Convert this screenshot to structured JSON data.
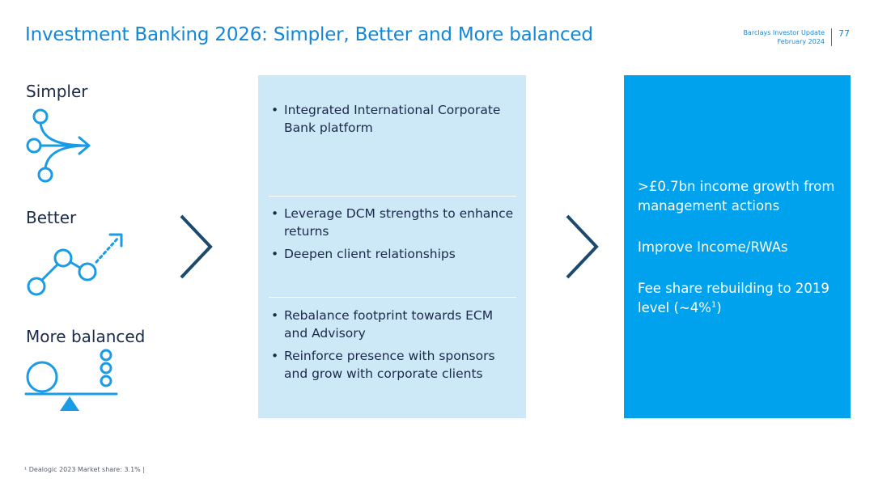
{
  "header": {
    "title": "Investment Banking 2026: Simpler, Better and More balanced",
    "meta_line1": "Barclays Investor Update",
    "meta_line2": "February 2024",
    "page_number": "77"
  },
  "pillars": [
    {
      "label": "Simpler",
      "icon": "branching-arrow-icon"
    },
    {
      "label": "Better",
      "icon": "growth-line-icon"
    },
    {
      "label": "More balanced",
      "icon": "balance-scale-icon"
    }
  ],
  "initiatives": [
    {
      "bullets": [
        "Integrated International Corporate Bank platform"
      ]
    },
    {
      "bullets": [
        "Leverage DCM strengths to enhance returns",
        "Deepen client relationships"
      ]
    },
    {
      "bullets": [
        "Rebalance footprint towards ECM and Advisory",
        "Reinforce presence with sponsors and grow with corporate clients"
      ]
    }
  ],
  "outcomes": {
    "item1": ">£0.7bn income growth from management actions",
    "item2": "Improve Income/RWAs",
    "item3_text": "Fee share rebuilding to 2019 level (~4%",
    "item3_sup": "1",
    "item3_end": ")"
  },
  "footnote": "¹ Dealogic 2023 Market share: 3.1% |",
  "colors": {
    "title_blue": "#1287d8",
    "panel_light": "#cde8f7",
    "panel_bright": "#00a2ee",
    "icon_blue": "#1a9be6",
    "chevron_navy": "#1b4a6e"
  }
}
